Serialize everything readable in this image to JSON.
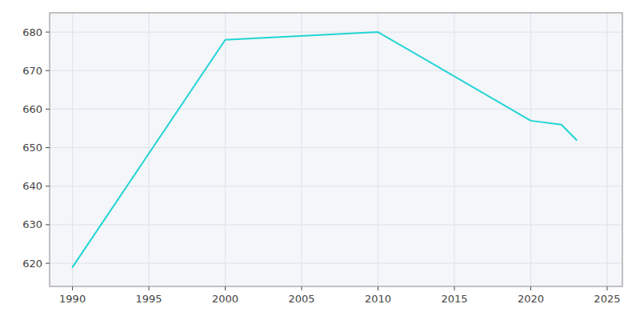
{
  "chart_data": {
    "type": "line",
    "x": [
      1990,
      2000,
      2010,
      2020,
      2022,
      2023
    ],
    "values": [
      619,
      678,
      680,
      657,
      656,
      652
    ],
    "color": "#22D4D4",
    "xlim": [
      1988.5,
      2026
    ],
    "ylim": [
      614,
      685
    ],
    "xticks": [
      1990,
      1995,
      2000,
      2005,
      2010,
      2015,
      2020,
      2025
    ],
    "yticks": [
      620,
      630,
      640,
      650,
      660,
      670,
      680
    ],
    "grid": true
  }
}
